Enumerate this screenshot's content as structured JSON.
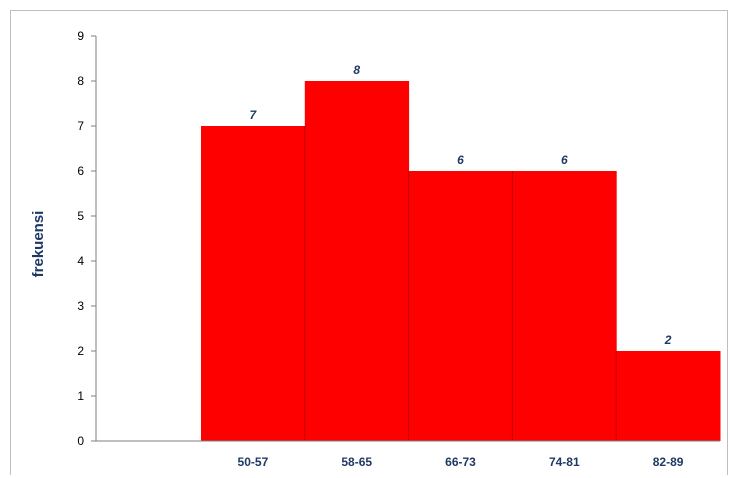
{
  "chart_data": {
    "type": "bar",
    "categories": [
      "50-57",
      "58-65",
      "66-73",
      "74-81",
      "82-89"
    ],
    "values": [
      7,
      8,
      6,
      6,
      2
    ],
    "title": "",
    "xlabel": "",
    "ylabel": "frekuensi",
    "ylim": [
      0,
      9
    ],
    "yticks": [
      "0",
      "1",
      "2",
      "3",
      "4",
      "5",
      "6",
      "7",
      "8",
      "9"
    ],
    "grid": false,
    "legend": "none",
    "bar_color": "#ff0000",
    "label_color": "#1f3864"
  }
}
